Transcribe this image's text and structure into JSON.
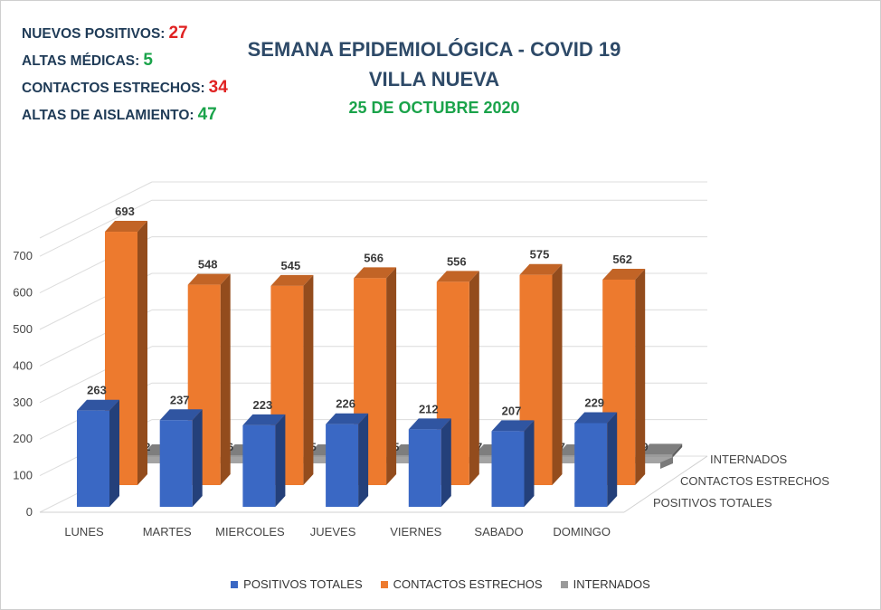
{
  "stats": [
    {
      "label": "NUEVOS POSITIVOS:",
      "value": "27",
      "color": "#e02222"
    },
    {
      "label": "ALTAS MÉDICAS:",
      "value": "5",
      "color": "#1aa34a"
    },
    {
      "label": "CONTACTOS ESTRECHOS:",
      "value": "34",
      "color": "#e02222"
    },
    {
      "label": "ALTAS DE AISLAMIENTO:",
      "value": "47",
      "color": "#1aa34a"
    }
  ],
  "title_line1": "SEMANA EPIDEMIOLÓGICA - COVID 19",
  "title_line2": "VILLA NUEVA",
  "date": "25 DE OCTUBRE 2020",
  "chart_data": {
    "type": "bar",
    "style": "3d-clustered-column",
    "categories": [
      "LUNES",
      "MARTES",
      "MIERCOLES",
      "JUEVES",
      "VIERNES",
      "SABADO",
      "DOMINGO"
    ],
    "series": [
      {
        "name": "POSITIVOS TOTALES",
        "values": [
          263,
          237,
          223,
          226,
          212,
          207,
          229
        ],
        "color": "#3a68c4"
      },
      {
        "name": "CONTACTOS ESTRECHOS",
        "values": [
          693,
          548,
          545,
          566,
          556,
          575,
          562
        ],
        "color": "#ed7a2e"
      },
      {
        "name": "INTERNADOS",
        "values": [
          2,
          6,
          5,
          5,
          7,
          7,
          9
        ],
        "color": "#9a9a9a"
      }
    ],
    "yticks": [
      "0",
      "100",
      "200",
      "300",
      "400",
      "500",
      "600",
      "700"
    ],
    "ylim": [
      0,
      700
    ],
    "depth_labels": [
      "POSITIVOS TOTALES",
      "CONTACTOS ESTRECHOS",
      "INTERNADOS"
    ],
    "grid": true,
    "legend_position": "bottom"
  }
}
